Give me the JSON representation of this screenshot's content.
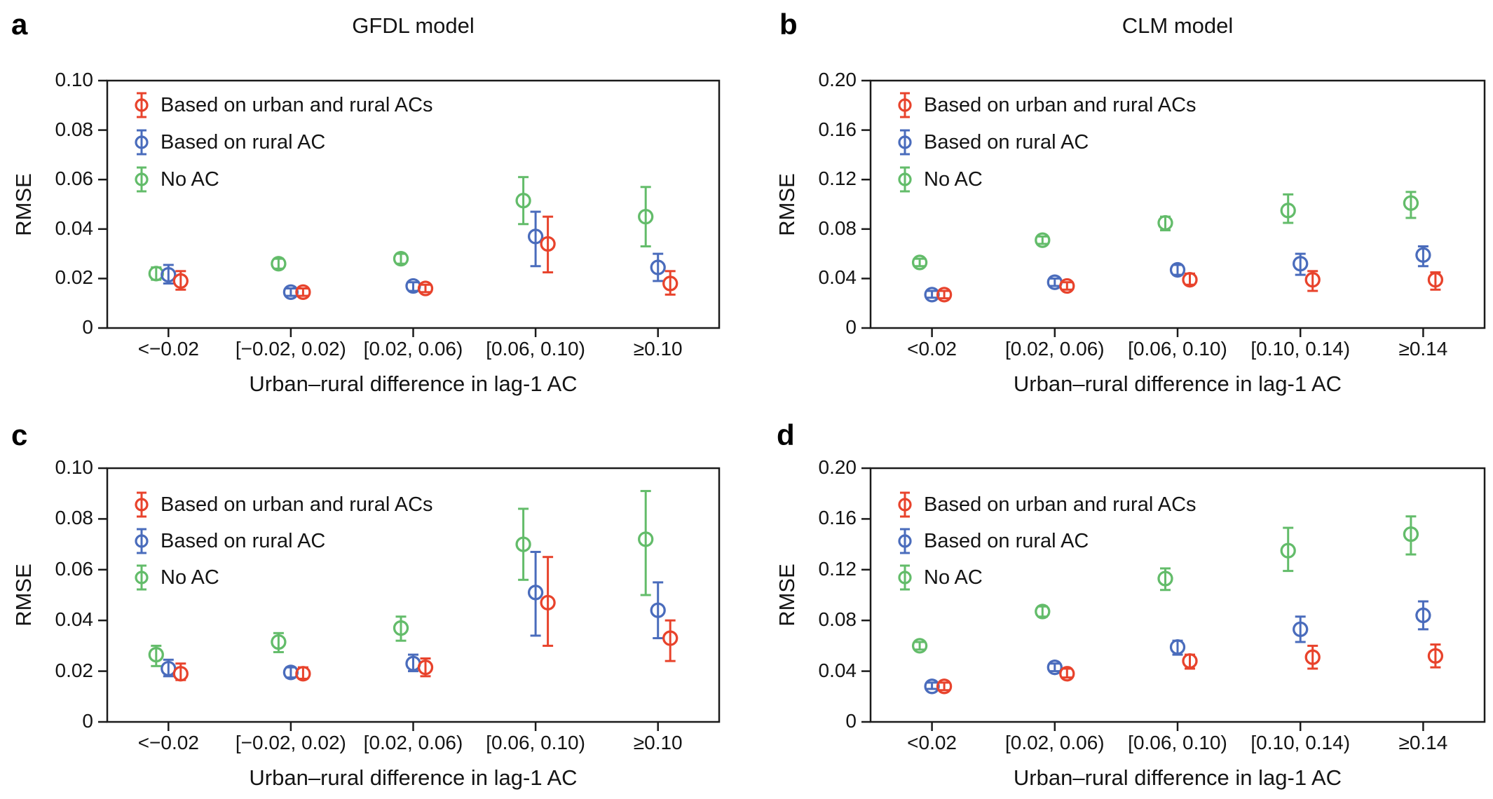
{
  "figure": {
    "background": "#ffffff",
    "frame_color": "#1b1b1b",
    "text_color": "#141414"
  },
  "legend": {
    "items": [
      "Based on urban and rural ACs",
      "Based on rural AC",
      "No AC"
    ]
  },
  "chart_data": [
    {
      "panel_label": "a",
      "type": "scatter",
      "subtype": "errorbar",
      "title": "GFDL model",
      "xlabel": "Urban–rural difference in lag-1 AC",
      "ylabel": "RMSE",
      "ylim": [
        0,
        0.1
      ],
      "ytick_values": [
        0,
        0.02,
        0.04,
        0.06,
        0.08,
        0.1
      ],
      "yticks": [
        "0",
        "0.02",
        "0.04",
        "0.06",
        "0.08",
        "0.10"
      ],
      "categories": [
        "<−0.02",
        "[−0.02, 0.02)",
        "[0.02, 0.06)",
        "[0.06, 0.10)",
        "≥0.10"
      ],
      "grid": false,
      "legend_position": "upper-left",
      "series": [
        {
          "name": "Based on urban and rural ACs",
          "color": "#E8432C",
          "dodge": 1,
          "values": [
            0.019,
            0.0145,
            0.016,
            0.034,
            0.018
          ],
          "err_lo": [
            0.0155,
            0.013,
            0.0145,
            0.0225,
            0.0135
          ],
          "err_hi": [
            0.023,
            0.016,
            0.0175,
            0.045,
            0.023
          ]
        },
        {
          "name": "Based on rural AC",
          "color": "#4A6CBC",
          "dodge": 0,
          "values": [
            0.0215,
            0.0145,
            0.017,
            0.037,
            0.0245
          ],
          "err_lo": [
            0.018,
            0.013,
            0.015,
            0.025,
            0.019
          ],
          "err_hi": [
            0.0255,
            0.016,
            0.0185,
            0.047,
            0.03
          ]
        },
        {
          "name": "No AC",
          "color": "#63BC6A",
          "dodge": -1,
          "values": [
            0.022,
            0.026,
            0.028,
            0.0515,
            0.045
          ],
          "err_lo": [
            0.0195,
            0.024,
            0.026,
            0.042,
            0.033
          ],
          "err_hi": [
            0.0245,
            0.028,
            0.03,
            0.061,
            0.057
          ]
        }
      ]
    },
    {
      "panel_label": "b",
      "type": "scatter",
      "subtype": "errorbar",
      "title": "CLM model",
      "xlabel": "Urban–rural difference in lag-1 AC",
      "ylabel": "RMSE",
      "ylim": [
        0,
        0.2
      ],
      "ytick_values": [
        0,
        0.04,
        0.08,
        0.12,
        0.16,
        0.2
      ],
      "yticks": [
        "0",
        "0.04",
        "0.08",
        "0.12",
        "0.16",
        "0.20"
      ],
      "categories": [
        "<0.02",
        "[0.02, 0.06)",
        "[0.06, 0.10)",
        "[0.10, 0.14)",
        "≥0.14"
      ],
      "grid": false,
      "legend_position": "upper-left",
      "series": [
        {
          "name": "Based on urban and rural ACs",
          "color": "#E8432C",
          "dodge": 1,
          "values": [
            0.027,
            0.034,
            0.039,
            0.039,
            0.039
          ],
          "err_lo": [
            0.024,
            0.031,
            0.035,
            0.03,
            0.031
          ],
          "err_hi": [
            0.03,
            0.037,
            0.044,
            0.046,
            0.045
          ]
        },
        {
          "name": "Based on rural AC",
          "color": "#4A6CBC",
          "dodge": 0,
          "values": [
            0.027,
            0.037,
            0.047,
            0.052,
            0.059
          ],
          "err_lo": [
            0.0245,
            0.034,
            0.043,
            0.043,
            0.05
          ],
          "err_hi": [
            0.03,
            0.04,
            0.051,
            0.06,
            0.066
          ]
        },
        {
          "name": "No AC",
          "color": "#63BC6A",
          "dodge": -1,
          "values": [
            0.053,
            0.071,
            0.085,
            0.095,
            0.101
          ],
          "err_lo": [
            0.05,
            0.068,
            0.079,
            0.085,
            0.089
          ],
          "err_hi": [
            0.056,
            0.074,
            0.09,
            0.108,
            0.11
          ]
        }
      ]
    },
    {
      "panel_label": "c",
      "type": "scatter",
      "subtype": "errorbar",
      "title": "",
      "xlabel": "Urban–rural difference in lag-1 AC",
      "ylabel": "RMSE",
      "ylim": [
        0,
        0.1
      ],
      "ytick_values": [
        0,
        0.02,
        0.04,
        0.06,
        0.08,
        0.1
      ],
      "yticks": [
        "0",
        "0.02",
        "0.04",
        "0.06",
        "0.08",
        "0.10"
      ],
      "categories": [
        "<−0.02",
        "[−0.02, 0.02)",
        "[0.02, 0.06)",
        "[0.06, 0.10)",
        "≥0.10"
      ],
      "grid": false,
      "legend_position": "upper-left",
      "series": [
        {
          "name": "Based on urban and rural ACs",
          "color": "#E8432C",
          "dodge": 1,
          "values": [
            0.019,
            0.019,
            0.0215,
            0.047,
            0.033
          ],
          "err_lo": [
            0.0165,
            0.017,
            0.018,
            0.03,
            0.024
          ],
          "err_hi": [
            0.023,
            0.0215,
            0.025,
            0.065,
            0.04
          ]
        },
        {
          "name": "Based on rural AC",
          "color": "#4A6CBC",
          "dodge": 0,
          "values": [
            0.021,
            0.0195,
            0.023,
            0.051,
            0.044
          ],
          "err_lo": [
            0.018,
            0.0175,
            0.02,
            0.034,
            0.033
          ],
          "err_hi": [
            0.0245,
            0.0215,
            0.0265,
            0.067,
            0.055
          ]
        },
        {
          "name": "No AC",
          "color": "#63BC6A",
          "dodge": -1,
          "values": [
            0.0265,
            0.0315,
            0.037,
            0.07,
            0.072
          ],
          "err_lo": [
            0.022,
            0.0275,
            0.032,
            0.056,
            0.05
          ],
          "err_hi": [
            0.03,
            0.035,
            0.0415,
            0.084,
            0.091
          ]
        }
      ]
    },
    {
      "panel_label": "d",
      "type": "scatter",
      "subtype": "errorbar",
      "title": "",
      "xlabel": "Urban–rural difference in lag-1 AC",
      "ylabel": "RMSE",
      "ylim": [
        0,
        0.2
      ],
      "ytick_values": [
        0,
        0.04,
        0.08,
        0.12,
        0.16,
        0.2
      ],
      "yticks": [
        "0",
        "0.04",
        "0.08",
        "0.12",
        "0.16",
        "0.20"
      ],
      "categories": [
        "<0.02",
        "[0.02, 0.06)",
        "[0.06, 0.10)",
        "[0.10, 0.14)",
        "≥0.14"
      ],
      "grid": false,
      "legend_position": "upper-left",
      "series": [
        {
          "name": "Based on urban and rural ACs",
          "color": "#E8432C",
          "dodge": 1,
          "values": [
            0.028,
            0.038,
            0.048,
            0.051,
            0.052
          ],
          "err_lo": [
            0.025,
            0.035,
            0.042,
            0.042,
            0.043
          ],
          "err_hi": [
            0.031,
            0.042,
            0.053,
            0.06,
            0.061
          ]
        },
        {
          "name": "Based on rural AC",
          "color": "#4A6CBC",
          "dodge": 0,
          "values": [
            0.028,
            0.043,
            0.059,
            0.073,
            0.084
          ],
          "err_lo": [
            0.026,
            0.04,
            0.053,
            0.063,
            0.073
          ],
          "err_hi": [
            0.031,
            0.046,
            0.064,
            0.083,
            0.095
          ]
        },
        {
          "name": "No AC",
          "color": "#63BC6A",
          "dodge": -1,
          "values": [
            0.06,
            0.087,
            0.113,
            0.135,
            0.148
          ],
          "err_lo": [
            0.057,
            0.083,
            0.104,
            0.119,
            0.132
          ],
          "err_hi": [
            0.063,
            0.091,
            0.121,
            0.153,
            0.162
          ]
        }
      ]
    }
  ]
}
